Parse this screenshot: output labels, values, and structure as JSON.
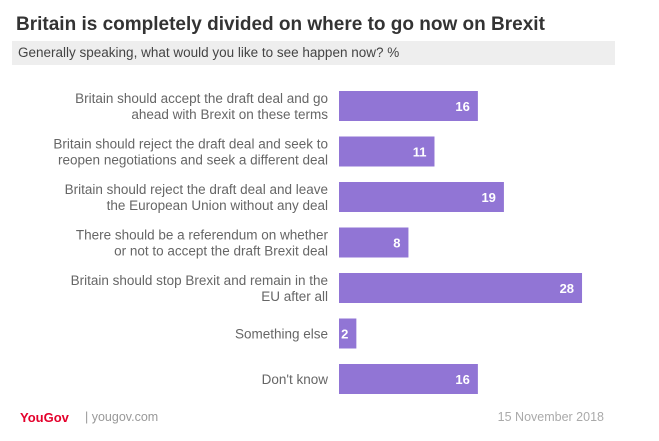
{
  "header": {
    "title": "Britain is completely divided on where to go now on Brexit",
    "subtitle": "Generally speaking, what would you like to see happen now? %"
  },
  "chart_data": {
    "type": "bar",
    "orientation": "horizontal",
    "title": "Britain is completely divided on where to go now on Brexit",
    "subtitle": "Generally speaking, what would you like to see happen now? %",
    "categories": [
      [
        "Britain should accept the draft deal and go",
        "ahead with Brexit on these terms"
      ],
      [
        "Britain should reject the draft deal and seek to",
        "reopen negotiations and seek a different deal"
      ],
      [
        "Britain should reject the draft deal and leave",
        "the European Union without any deal"
      ],
      [
        "There should be a referendum on whether",
        "or not to accept the draft Brexit deal"
      ],
      [
        "Britain should stop Brexit and remain in the",
        "EU after all"
      ],
      [
        "Something else"
      ],
      [
        "Don't know"
      ]
    ],
    "values": [
      16,
      11,
      19,
      8,
      28,
      2,
      16
    ],
    "bar_color": "#9175d5",
    "xlim": [
      0,
      28
    ],
    "grid": false,
    "legend": "none"
  },
  "footer": {
    "logo": "YouGov",
    "site": "| yougov.com",
    "date": "15 November 2018"
  },
  "colors": {
    "title": "#333333",
    "brand": "#e4002b",
    "bar": "#9175d5"
  }
}
